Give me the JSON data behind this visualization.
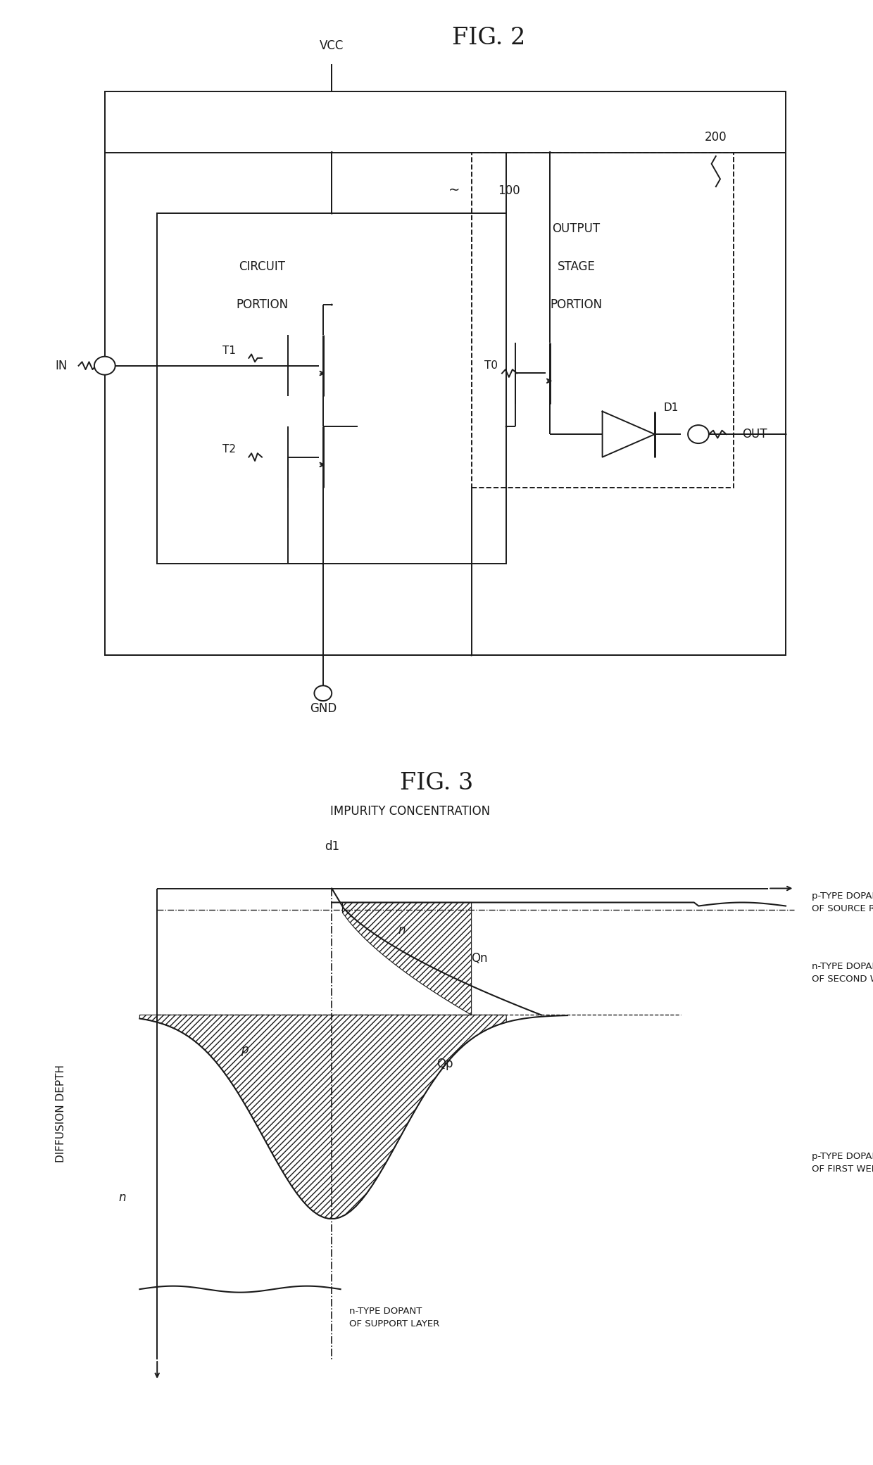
{
  "fig2_title": "FIG. 2",
  "fig3_title": "FIG. 3",
  "background_color": "#ffffff",
  "line_color": "#1a1a1a",
  "fig2": {
    "vcc_label": "VCC",
    "gnd_label": "GND",
    "in_label": "IN",
    "out_label": "OUT",
    "t1_label": "T1",
    "t2_label": "T2",
    "t0_label": "T0",
    "d1_label": "D1",
    "label_100": "100",
    "label_200": "200",
    "circuit_label1": "CIRCUIT",
    "circuit_label2": "PORTION",
    "output_label1": "OUTPUT",
    "output_label2": "STAGE",
    "output_label3": "PORTION"
  },
  "fig3": {
    "xlabel": "IMPURITY CONCENTRATION",
    "ylabel": "DIFFUSION DEPTH",
    "d1_label": "d1",
    "qn_label": "Qn",
    "qp_label": "Qp",
    "n_label_upper": "n",
    "p_label": "p",
    "n_label_lower": "n",
    "label_p_source": "p-TYPE DOPANT\nOF SOURCE REGION",
    "label_n_second": "n-TYPE DOPANT\nOF SECOND WELL REGION",
    "label_p_first": "p-TYPE DOPANT\nOF FIRST WELL REGION",
    "label_n_support": "n-TYPE DOPANT\nOF SUPPORT LAYER"
  }
}
